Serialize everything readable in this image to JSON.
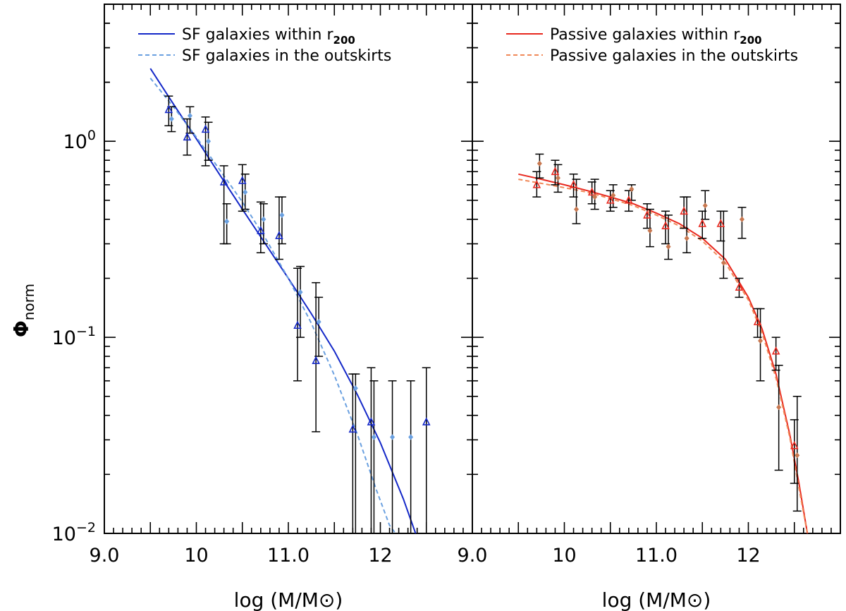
{
  "chart_data": [
    {
      "type": "scatter",
      "panel": "left",
      "xlabel": "log (M/M⊙)",
      "ylabel": "Φnorm",
      "xlim": [
        9.0,
        13.0
      ],
      "ylim": [
        0.01,
        5.0
      ],
      "yscale": "log",
      "x_tick_labels": [
        "9.0",
        "10",
        "11.0",
        "12",
        ""
      ],
      "y_tick_labels": [
        {
          "base": "10",
          "exp": "0"
        },
        {
          "base": "10",
          "exp": "−1"
        },
        {
          "base": "10",
          "exp": "−2"
        }
      ],
      "legend": [
        {
          "label": "SF galaxies within r",
          "sub": "200",
          "color": "#1428c8",
          "style": "solid"
        },
        {
          "label": "SF galaxies in the outskirts",
          "sub": "",
          "color": "#6aa0e0",
          "style": "dashed"
        }
      ],
      "series": [
        {
          "name": "SF galaxies within r200",
          "marker": "triangle",
          "color": "#1428c8",
          "x": [
            9.7,
            9.9,
            10.1,
            10.3,
            10.5,
            10.7,
            10.9,
            11.1,
            11.3,
            11.7,
            11.9,
            12.5
          ],
          "y": [
            1.45,
            1.05,
            1.15,
            0.62,
            0.63,
            0.35,
            0.33,
            0.115,
            0.076,
            0.034,
            0.037,
            0.037
          ],
          "yerr_low": [
            1.2,
            0.85,
            0.75,
            0.3,
            0.44,
            0.27,
            0.25,
            0.06,
            0.033,
            0.008,
            0.008,
            0.008
          ],
          "yerr_high": [
            1.7,
            1.3,
            1.33,
            0.75,
            0.76,
            0.49,
            0.52,
            0.225,
            0.19,
            0.065,
            0.07,
            0.07
          ]
        },
        {
          "name": "SF galaxies in the outskirts",
          "marker": "diamond",
          "color": "#6aa0e0",
          "x": [
            9.7,
            9.9,
            10.1,
            10.3,
            10.5,
            10.7,
            10.9,
            11.1,
            11.3,
            11.7,
            11.9,
            12.1,
            12.3
          ],
          "y": [
            1.3,
            1.35,
            1.0,
            0.39,
            0.55,
            0.4,
            0.42,
            0.17,
            0.12,
            0.055,
            0.031,
            0.031,
            0.031
          ],
          "yerr_low": [
            1.12,
            1.1,
            0.8,
            0.3,
            0.45,
            0.3,
            0.3,
            0.1,
            0.08,
            0.008,
            0.008,
            0.008,
            0.008
          ],
          "yerr_high": [
            1.5,
            1.5,
            1.25,
            0.48,
            0.68,
            0.48,
            0.52,
            0.23,
            0.16,
            0.065,
            0.06,
            0.06,
            0.06
          ]
        }
      ],
      "fits": [
        {
          "name": "SF galaxies within r200",
          "color": "#1428c8",
          "style": "solid",
          "x": [
            9.5,
            9.75,
            10.0,
            10.25,
            10.5,
            10.75,
            11.0,
            11.25,
            11.5,
            11.75,
            12.0,
            12.25,
            12.4
          ],
          "y": [
            2.35,
            1.55,
            1.03,
            0.68,
            0.45,
            0.3,
            0.2,
            0.132,
            0.085,
            0.051,
            0.029,
            0.015,
            0.0095
          ]
        },
        {
          "name": "SF galaxies in the outskirts",
          "color": "#6aa0e0",
          "style": "dashed",
          "x": [
            9.5,
            9.75,
            10.0,
            10.25,
            10.5,
            10.75,
            11.0,
            11.25,
            11.5,
            11.75,
            11.95,
            12.1,
            12.2
          ],
          "y": [
            2.1,
            1.5,
            1.05,
            0.72,
            0.49,
            0.32,
            0.2,
            0.118,
            0.064,
            0.032,
            0.017,
            0.011,
            0.0095
          ]
        }
      ]
    },
    {
      "type": "scatter",
      "panel": "right",
      "xlabel": "log (M/M⊙)",
      "xlim": [
        9.0,
        13.0
      ],
      "ylim": [
        0.01,
        5.0
      ],
      "yscale": "log",
      "x_tick_labels": [
        "9.0",
        "10",
        "11.0",
        "12"
      ],
      "legend": [
        {
          "label": "Passive galaxies within r",
          "sub": "200",
          "color": "#e8281e",
          "style": "solid"
        },
        {
          "label": "Passive galaxies in the outskirts",
          "sub": "",
          "color": "#f08858",
          "style": "dashed"
        }
      ],
      "series": [
        {
          "name": "Passive galaxies within r200",
          "marker": "triangle",
          "color": "#e8281e",
          "x": [
            9.7,
            9.9,
            10.1,
            10.3,
            10.5,
            10.7,
            10.9,
            11.1,
            11.3,
            11.5,
            11.7,
            11.9,
            12.1,
            12.3,
            12.5
          ],
          "y": [
            0.6,
            0.7,
            0.6,
            0.55,
            0.5,
            0.5,
            0.42,
            0.37,
            0.44,
            0.38,
            0.38,
            0.18,
            0.12,
            0.085,
            0.028
          ],
          "yerr_low": [
            0.52,
            0.6,
            0.52,
            0.48,
            0.44,
            0.44,
            0.36,
            0.3,
            0.36,
            0.32,
            0.31,
            0.16,
            0.1,
            0.068,
            0.018
          ],
          "yerr_high": [
            0.7,
            0.8,
            0.68,
            0.62,
            0.56,
            0.56,
            0.48,
            0.44,
            0.52,
            0.44,
            0.44,
            0.2,
            0.14,
            0.1,
            0.038
          ]
        },
        {
          "name": "Passive galaxies in the outskirts",
          "marker": "diamond",
          "color": "#c87850",
          "x": [
            9.7,
            9.9,
            10.1,
            10.3,
            10.5,
            10.7,
            10.9,
            11.1,
            11.3,
            11.5,
            11.7,
            11.9,
            12.1,
            12.3,
            12.5
          ],
          "y": [
            0.77,
            0.65,
            0.45,
            0.52,
            0.53,
            0.57,
            0.35,
            0.29,
            0.32,
            0.47,
            0.24,
            0.4,
            0.096,
            0.044,
            0.025
          ],
          "yerr_low": [
            0.65,
            0.55,
            0.38,
            0.45,
            0.46,
            0.5,
            0.29,
            0.25,
            0.27,
            0.4,
            0.2,
            0.32,
            0.06,
            0.021,
            0.013
          ],
          "yerr_high": [
            0.86,
            0.76,
            0.64,
            0.64,
            0.6,
            0.6,
            0.45,
            0.42,
            0.52,
            0.56,
            0.44,
            0.46,
            0.14,
            0.072,
            0.05
          ]
        }
      ],
      "fits": [
        {
          "name": "Passive galaxies within r200",
          "color": "#e8281e",
          "style": "solid",
          "x": [
            9.5,
            9.75,
            10.0,
            10.25,
            10.5,
            10.75,
            11.0,
            11.25,
            11.5,
            11.75,
            12.0,
            12.15,
            12.3,
            12.45,
            12.55,
            12.65
          ],
          "y": [
            0.68,
            0.64,
            0.6,
            0.56,
            0.52,
            0.48,
            0.43,
            0.38,
            0.32,
            0.25,
            0.16,
            0.11,
            0.065,
            0.032,
            0.018,
            0.0095
          ]
        },
        {
          "name": "Passive galaxies in the outskirts",
          "color": "#f08858",
          "style": "dashed",
          "x": [
            9.5,
            9.75,
            10.0,
            10.25,
            10.5,
            10.75,
            11.0,
            11.25,
            11.5,
            11.75,
            12.0,
            12.15,
            12.3,
            12.45,
            12.55,
            12.65
          ],
          "y": [
            0.64,
            0.61,
            0.58,
            0.55,
            0.51,
            0.47,
            0.42,
            0.37,
            0.31,
            0.24,
            0.155,
            0.105,
            0.062,
            0.031,
            0.017,
            0.0095
          ]
        }
      ]
    }
  ]
}
